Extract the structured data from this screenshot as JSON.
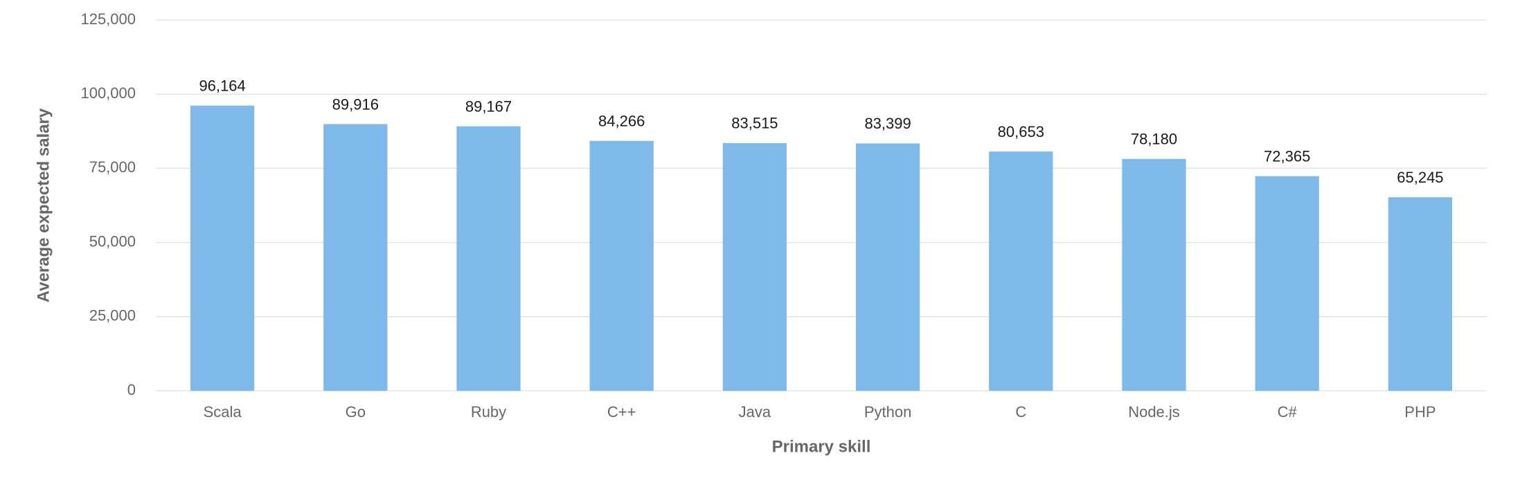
{
  "chart_data": {
    "type": "bar",
    "x_label": "Primary skill",
    "y_label": "Average expected salary",
    "categories": [
      "Scala",
      "Go",
      "Ruby",
      "C++",
      "Java",
      "Python",
      "C",
      "Node.js",
      "C#",
      "PHP"
    ],
    "values": [
      96164,
      89916,
      89167,
      84266,
      83515,
      83399,
      80653,
      78180,
      72365,
      65245
    ],
    "value_labels": [
      "96,164",
      "89,916",
      "89,167",
      "84,266",
      "83,515",
      "83,399",
      "80,653",
      "78,180",
      "72,365",
      "65,245"
    ],
    "color": "#7fb9ea",
    "ylim": [
      0,
      125000
    ],
    "yticks": [
      0,
      {
        "value": 25000,
        "label": "25,000"
      },
      {
        "value": 50000,
        "label": "50,000"
      },
      {
        "value": 75000,
        "label": "75,000"
      },
      {
        "value": 100000,
        "label": "100,000"
      },
      {
        "value": 125000,
        "label": "125,000"
      }
    ],
    "grid": true
  }
}
